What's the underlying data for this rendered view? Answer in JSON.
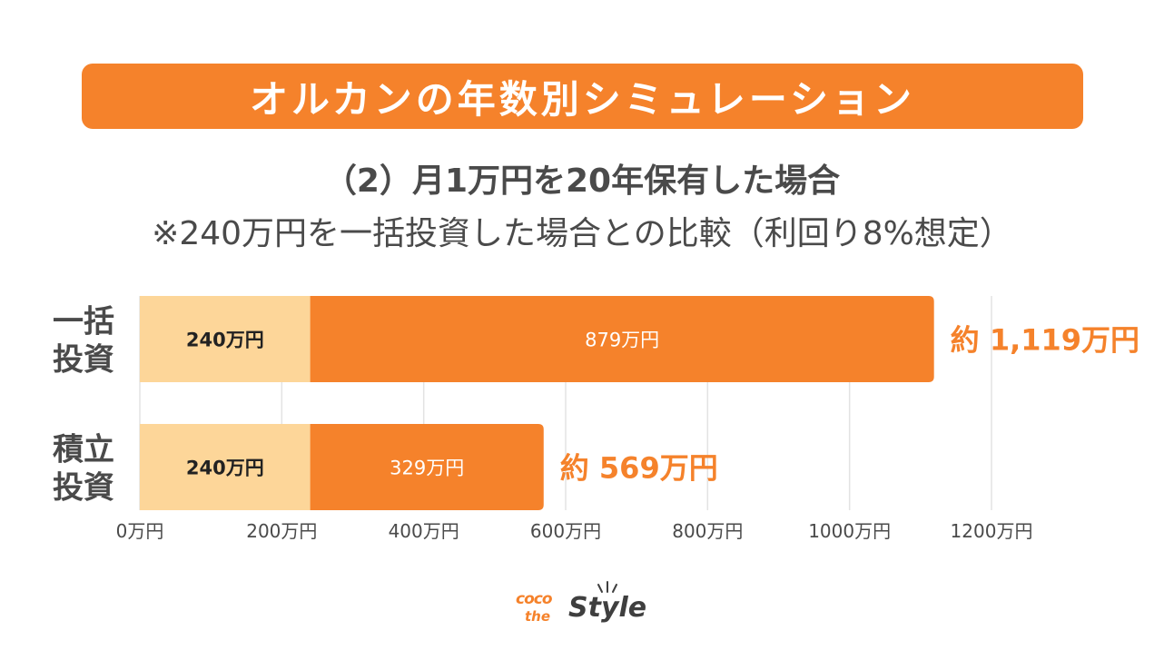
{
  "header": {
    "title": "オルカンの年数別シミュレーション",
    "subtitle": "（2）月1万円を20年保有した場合",
    "note": "※240万円を一括投資した場合との比較（利回り8%想定）"
  },
  "colors": {
    "accent": "#f5822b",
    "principal": "#fdd699",
    "text": "#4a4a4a"
  },
  "chart_data": {
    "type": "bar",
    "orientation": "horizontal",
    "stacked": true,
    "unit": "万円",
    "categories": [
      "一括投資",
      "積立投資"
    ],
    "series": [
      {
        "values": [
          240,
          240
        ],
        "labels": [
          "240万円",
          "240万円"
        ],
        "color": "#fdd699"
      },
      {
        "values": [
          879,
          329
        ],
        "labels": [
          "879万円",
          "329万円"
        ],
        "color": "#f5822b"
      }
    ],
    "totals": [
      "約 1,119万円",
      "約 569万円"
    ],
    "xlim": [
      0,
      1200
    ],
    "xticks": [
      "0万円",
      "200万円",
      "400万円",
      "600万円",
      "800万円",
      "1000万円",
      "1200万円"
    ],
    "grid": true,
    "legend": "none"
  },
  "logo": {
    "coco": "coco",
    "the": "the",
    "style": "Style"
  }
}
